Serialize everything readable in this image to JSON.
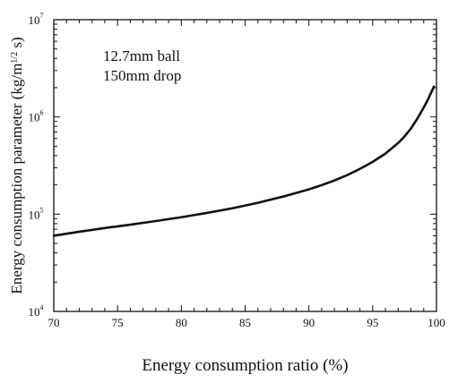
{
  "chart_data": {
    "type": "line",
    "title": "",
    "xlabel": "Energy consumption ratio (%)",
    "ylabel": "Energy consumption parameter (kg/m",
    "ylabel_sup": "1/2",
    "ylabel_tail": " s)",
    "xlim": [
      70,
      100
    ],
    "ylim": [
      10000,
      10000000
    ],
    "yscale": "log",
    "grid": false,
    "x_ticks": [
      70,
      75,
      80,
      85,
      90,
      95,
      100
    ],
    "x_tick_labels": [
      "70",
      "75",
      "80",
      "85",
      "90",
      "95",
      "100"
    ],
    "y_ticks": [
      {
        "value": 10000,
        "base": "10",
        "exp": "4"
      },
      {
        "value": 100000,
        "base": "10",
        "exp": "5"
      },
      {
        "value": 1000000,
        "base": "10",
        "exp": "6"
      },
      {
        "value": 10000000,
        "base": "10",
        "exp": "7"
      }
    ],
    "annotations": [
      "12.7mm ball",
      "150mm drop"
    ],
    "series": [
      {
        "x": [
          70,
          72,
          74,
          76,
          78,
          80,
          82,
          84,
          86,
          88,
          90,
          91,
          92,
          93,
          94,
          95,
          96,
          97,
          97.5,
          98,
          98.5,
          99,
          99.3,
          99.6,
          99.8
        ],
        "y": [
          60000,
          66000,
          72000,
          78000,
          85000,
          93000,
          103000,
          115000,
          131000,
          152000,
          180000,
          199000,
          222000,
          252000,
          292000,
          345000,
          420000,
          540000,
          630000,
          760000,
          960000,
          1250000,
          1480000,
          1800000,
          2050000
        ]
      }
    ]
  }
}
